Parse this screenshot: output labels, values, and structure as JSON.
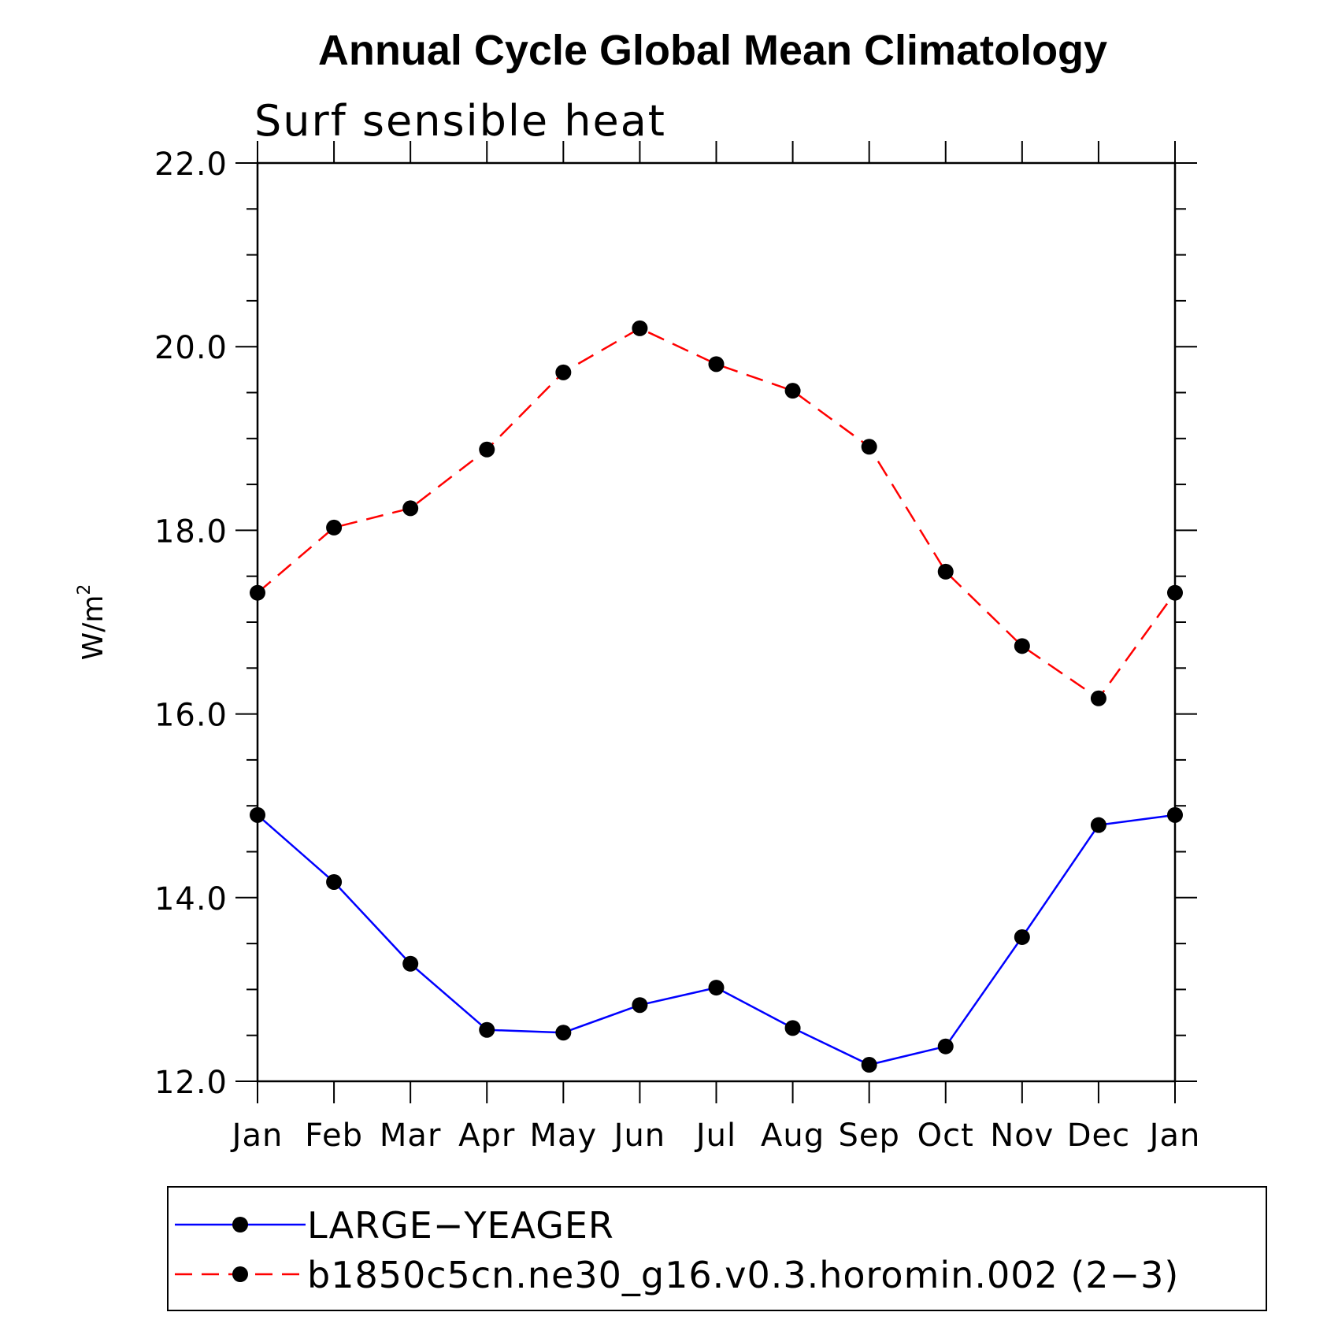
{
  "chart_data": {
    "type": "line",
    "title": "Annual Cycle Global Mean Climatology",
    "subtitle": "Surf sensible heat",
    "ylabel": "W/m",
    "ylabel_sup": "2",
    "xlabel": "",
    "categories": [
      "Jan",
      "Feb",
      "Mar",
      "Apr",
      "May",
      "Jun",
      "Jul",
      "Aug",
      "Sep",
      "Oct",
      "Nov",
      "Dec",
      "Jan"
    ],
    "ylim": [
      12.0,
      22.0
    ],
    "yticks": [
      "12.0",
      "14.0",
      "16.0",
      "18.0",
      "20.0",
      "22.0"
    ],
    "y_minor_step": 0.5,
    "grid": false,
    "legend_position": "bottom",
    "series": [
      {
        "name": "LARGE−YEAGER",
        "color": "#0000ff",
        "dash": "solid",
        "marker": "filled-circle",
        "values": [
          14.9,
          14.17,
          13.28,
          12.56,
          12.53,
          12.83,
          13.02,
          12.58,
          12.18,
          12.38,
          13.57,
          14.79,
          14.9
        ]
      },
      {
        "name": "b1850c5cn.ne30_g16.v0.3.horomin.002 (2−3)",
        "color": "#ff0000",
        "dash": "dashed",
        "marker": "filled-circle",
        "values": [
          17.32,
          18.03,
          18.24,
          18.88,
          19.72,
          20.2,
          19.81,
          19.52,
          18.91,
          17.55,
          16.74,
          16.17,
          17.32
        ]
      }
    ]
  }
}
